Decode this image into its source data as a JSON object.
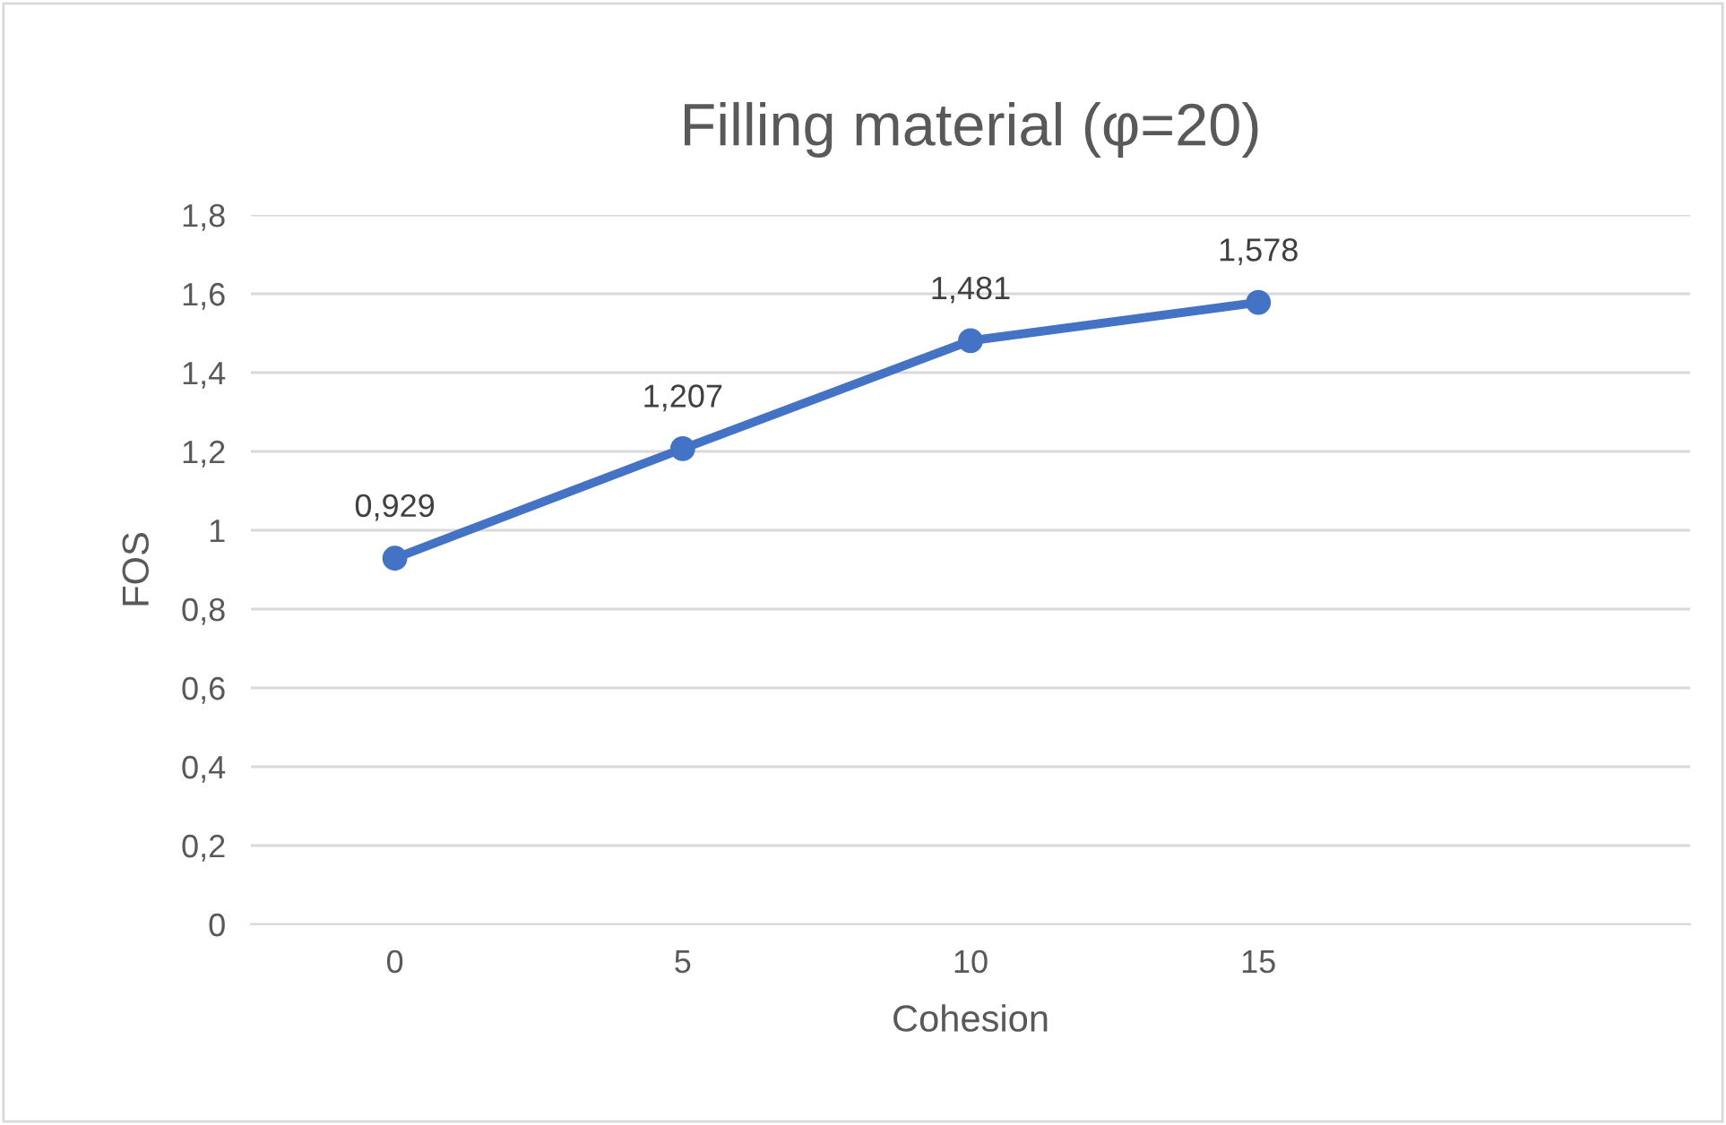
{
  "chart_data": {
    "type": "line",
    "title": "Filling material (φ=20)",
    "xlabel": "Cohesion",
    "ylabel": "FOS",
    "categories": [
      "0",
      "5",
      "10",
      "15",
      null
    ],
    "series": [
      {
        "color": "#4472c4",
        "values": [
          0.929,
          1.207,
          1.481,
          1.578,
          null
        ],
        "value_labels": [
          "0,929",
          "1,207",
          "1,481",
          "1,578",
          null
        ]
      }
    ],
    "ylim": [
      0,
      1.8
    ],
    "yticks": [
      0,
      {
        "value": 0.2,
        "label": "0,2"
      },
      {
        "value": 0.4,
        "label": "0,4"
      },
      {
        "value": 0.6,
        "label": "0,6"
      },
      {
        "value": 0.8,
        "label": "0,8"
      },
      1,
      {
        "value": 1.2,
        "label": "1,2"
      },
      {
        "value": 1.4,
        "label": "1,4"
      },
      {
        "value": 1.6,
        "label": "1,6"
      },
      {
        "value": 1.8,
        "label": "1,8"
      }
    ],
    "grid": "y",
    "marker": "circle",
    "line_style": "solid",
    "legend": false
  }
}
